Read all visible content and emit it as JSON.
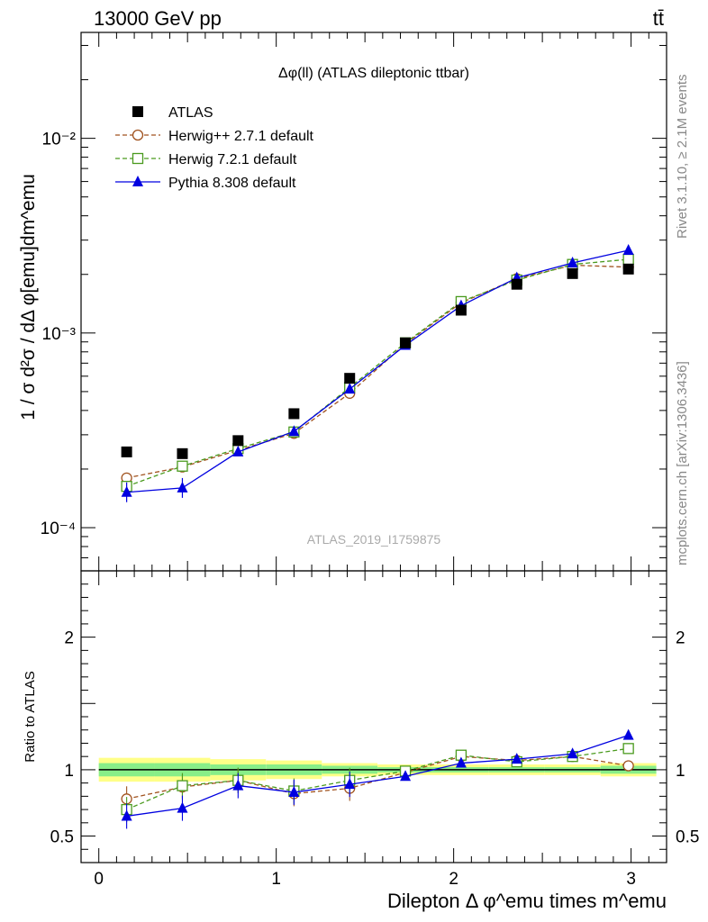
{
  "header": {
    "energy_label": "13000 GeV pp",
    "process_label": "tt̄"
  },
  "side_labels": {
    "rivet": "Rivet 3.1.10, ≥ 2.1M events",
    "mcplots": "mcplots.cern.ch [arXiv:1306.3436]"
  },
  "chart_data": [
    {
      "type": "scatter",
      "panel": "main",
      "title": "Δφ(ll) (ATLAS dileptonic ttbar)",
      "ylabel": "1 / σ  d²σ / dΔ φ[emu]dm^emu",
      "watermark": "ATLAS_2019_I1759875",
      "yscale": "log",
      "xlim": [
        -0.1,
        3.2
      ],
      "ylim": [
        6e-05,
        0.035
      ],
      "ytick_labels": [
        "10⁻⁴",
        "10⁻³",
        "10⁻²"
      ],
      "ytick_values": [
        0.0001,
        0.001,
        0.01
      ],
      "legend_position": "top-left",
      "x": [
        0.157,
        0.471,
        0.785,
        1.1,
        1.414,
        1.728,
        2.042,
        2.356,
        2.67,
        2.985
      ],
      "series": [
        {
          "name": "ATLAS",
          "color": "#000000",
          "marker": "square-filled",
          "values": [
            0.000245,
            0.00024,
            0.00028,
            0.000385,
            0.000585,
            0.00089,
            0.00131,
            0.00178,
            0.00202,
            0.00213
          ]
        },
        {
          "name": "Herwig++ 2.7.1 default",
          "color": "#a0521e",
          "marker": "circle-open",
          "line": "dashed",
          "values": [
            0.00018,
            0.000205,
            0.00025,
            0.000305,
            0.00049,
            0.00088,
            0.00143,
            0.0019,
            0.00223,
            0.00218
          ]
        },
        {
          "name": "Herwig 7.2.1 default",
          "color": "#4a9a1e",
          "marker": "square-open",
          "line": "dashed",
          "values": [
            0.000163,
            0.000207,
            0.000255,
            0.00031,
            0.000525,
            0.00089,
            0.00145,
            0.00187,
            0.00225,
            0.00239
          ]
        },
        {
          "name": "Pythia 8.308 default",
          "color": "#0000e0",
          "marker": "triangle-filled",
          "line": "solid",
          "values": [
            0.000152,
            0.00016,
            0.000245,
            0.000312,
            0.000515,
            0.000865,
            0.00138,
            0.00192,
            0.00229,
            0.00266
          ]
        }
      ]
    },
    {
      "type": "scatter",
      "panel": "ratio",
      "ylabel": "Ratio to ATLAS",
      "xlabel": "Dilepton Δ φ^emu times m^emu",
      "ylim": [
        0.3,
        2.5
      ],
      "ytick_labels": [
        "0.5",
        "1",
        "2"
      ],
      "ytick_values": [
        0.5,
        1,
        2
      ],
      "xtick_labels": [
        "0",
        "1",
        "2",
        "3"
      ],
      "xtick_values": [
        0,
        1,
        2,
        3
      ],
      "x": [
        0.157,
        0.471,
        0.785,
        1.1,
        1.414,
        1.728,
        2.042,
        2.356,
        2.67,
        2.985
      ],
      "series": [
        {
          "name": "Herwig++ 2.7.1 default",
          "values": [
            0.78,
            0.87,
            0.92,
            0.82,
            0.86,
            0.98,
            1.1,
            1.07,
            1.1,
            1.03
          ]
        },
        {
          "name": "Herwig 7.2.1 default",
          "values": [
            0.7,
            0.88,
            0.92,
            0.84,
            0.92,
            0.99,
            1.11,
            1.06,
            1.1,
            1.16
          ]
        },
        {
          "name": "Pythia 8.308 default",
          "values": [
            0.65,
            0.71,
            0.88,
            0.83,
            0.89,
            0.95,
            1.05,
            1.08,
            1.12,
            1.26
          ]
        }
      ],
      "bands": {
        "yellow_color": "#ffff88",
        "green_color": "#88ee88",
        "yellow_halfwidth": [
          0.09,
          0.09,
          0.08,
          0.07,
          0.05,
          0.04,
          0.04,
          0.04,
          0.04,
          0.05
        ],
        "green_halfwidth": [
          0.05,
          0.05,
          0.04,
          0.04,
          0.03,
          0.02,
          0.02,
          0.02,
          0.02,
          0.03
        ]
      }
    }
  ]
}
